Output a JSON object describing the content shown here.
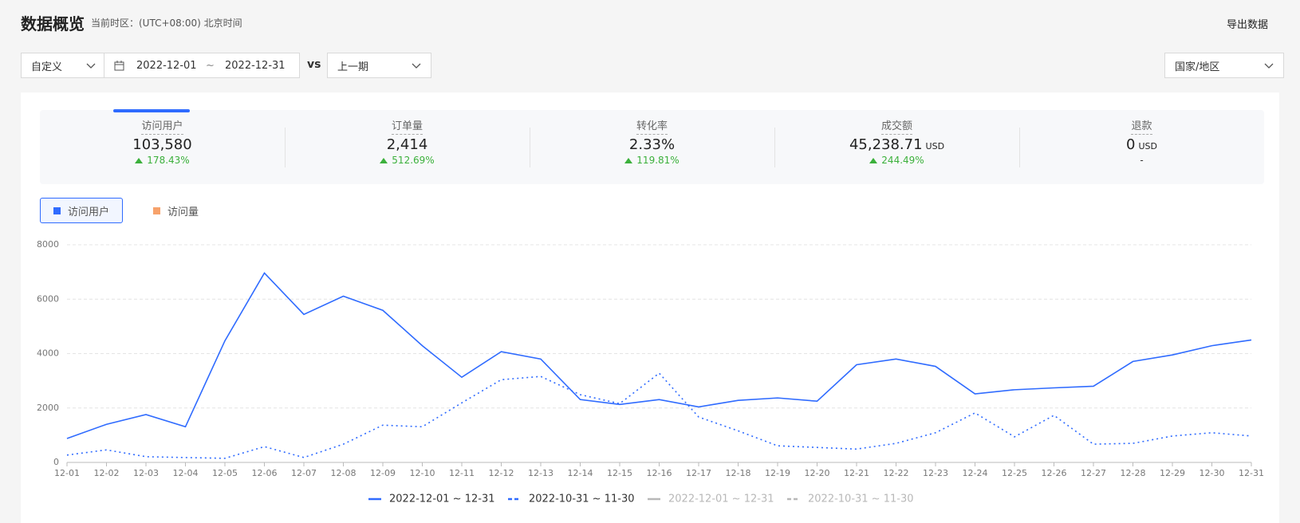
{
  "header": {
    "title": "数据概览",
    "timezone": "当前时区：(UTC+08:00) 北京时间",
    "export": "导出数据"
  },
  "filters": {
    "range_type": "自定义",
    "start": "2022-12-01",
    "separator": "~",
    "end": "2022-12-31",
    "vs": "vs",
    "compare": "上一期",
    "region": "国家/地区"
  },
  "metrics": [
    {
      "label": "访问用户",
      "value": "103,580",
      "change": "178.43%"
    },
    {
      "label": "订单量",
      "value": "2,414",
      "change": "512.69%"
    },
    {
      "label": "转化率",
      "value": "2.33%",
      "change": "119.81%"
    },
    {
      "label": "成交额",
      "value": "45,238.71",
      "unit": "USD",
      "change": "244.49%"
    },
    {
      "label": "退款",
      "value": "0",
      "unit": "USD",
      "change": "-"
    }
  ],
  "tabs": [
    {
      "label": "访问用户",
      "color": "#2f6bff",
      "active": true
    },
    {
      "label": "访问量",
      "color": "#f7a26b",
      "active": false
    }
  ],
  "chart_data": {
    "type": "line",
    "categories": [
      "12-01",
      "12-02",
      "12-03",
      "12-04",
      "12-05",
      "12-06",
      "12-07",
      "12-08",
      "12-09",
      "12-10",
      "12-11",
      "12-12",
      "12-13",
      "12-14",
      "12-15",
      "12-16",
      "12-17",
      "12-18",
      "12-19",
      "12-20",
      "12-21",
      "12-22",
      "12-23",
      "12-24",
      "12-25",
      "12-26",
      "12-27",
      "12-28",
      "12-29",
      "12-30",
      "12-31"
    ],
    "ylim": [
      0,
      8000
    ],
    "yticks": [
      0,
      2000,
      4000,
      6000,
      8000
    ],
    "grid": true,
    "series": [
      {
        "name": "2022-12-01 ~ 12-31",
        "color": "#2f6bff",
        "style": "solid",
        "values": [
          880,
          1400,
          1760,
          1310,
          4470,
          6960,
          5440,
          6110,
          5590,
          4290,
          3130,
          4070,
          3800,
          2310,
          2130,
          2310,
          2040,
          2280,
          2370,
          2250,
          3590,
          3800,
          3530,
          2520,
          2670,
          2740,
          2800,
          3710,
          3950,
          4290,
          4500
        ]
      },
      {
        "name": "2022-10-31 ~ 11-30",
        "color": "#2f6bff",
        "style": "dotted",
        "values": [
          270,
          460,
          210,
          180,
          150,
          580,
          180,
          670,
          1370,
          1310,
          2190,
          3040,
          3160,
          2490,
          2160,
          3280,
          1670,
          1160,
          610,
          550,
          490,
          700,
          1090,
          1820,
          940,
          1730,
          670,
          700,
          970,
          1090,
          970
        ]
      }
    ],
    "inactive_series": [
      {
        "name": "2022-12-01 ~ 12-31",
        "color": "#b8b8b8",
        "style": "solid"
      },
      {
        "name": "2022-10-31 ~ 11-30",
        "color": "#b8b8b8",
        "style": "dashed"
      }
    ]
  }
}
